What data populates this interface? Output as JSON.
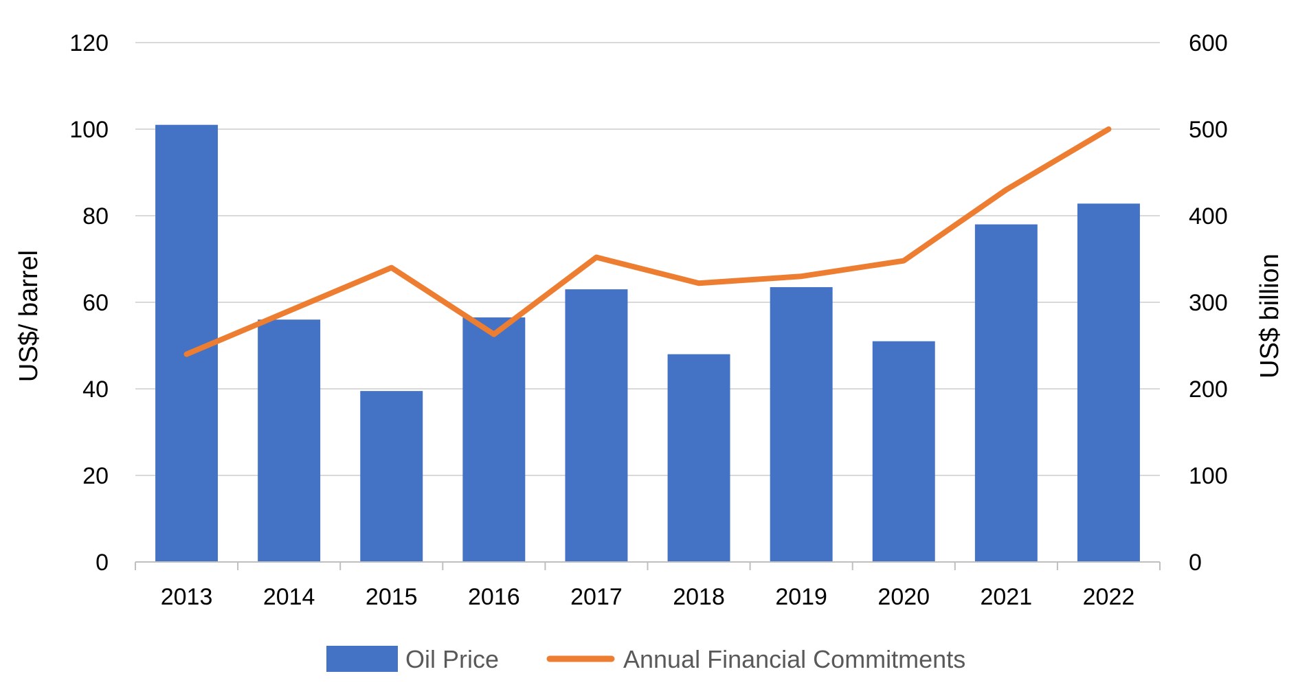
{
  "chart_data": {
    "type": "bar",
    "categories": [
      "2013",
      "2014",
      "2015",
      "2016",
      "2017",
      "2018",
      "2019",
      "2020",
      "2021",
      "2022"
    ],
    "series": [
      {
        "name": "Oil Price",
        "type": "bar",
        "axis": "left",
        "color": "#4472c4",
        "values": [
          101,
          56,
          39.5,
          56.5,
          63,
          48,
          63.5,
          51,
          78,
          82.8
        ]
      },
      {
        "name": "Annual Financial Commitments",
        "type": "line",
        "axis": "right",
        "color": "#ed7d31",
        "values": [
          240,
          290,
          340,
          263,
          352,
          322,
          330,
          348,
          430,
          500
        ]
      }
    ],
    "y_left": {
      "label": "US$/ barrel",
      "min": 0,
      "max": 120,
      "ticks": [
        "0",
        "20",
        "40",
        "60",
        "80",
        "100",
        "120"
      ]
    },
    "y_right": {
      "label": "US$ billion",
      "min": 0,
      "max": 600,
      "ticks": [
        "0",
        "100",
        "200",
        "300",
        "400",
        "500",
        "600"
      ]
    },
    "grid": true,
    "legend_position": "bottom"
  }
}
